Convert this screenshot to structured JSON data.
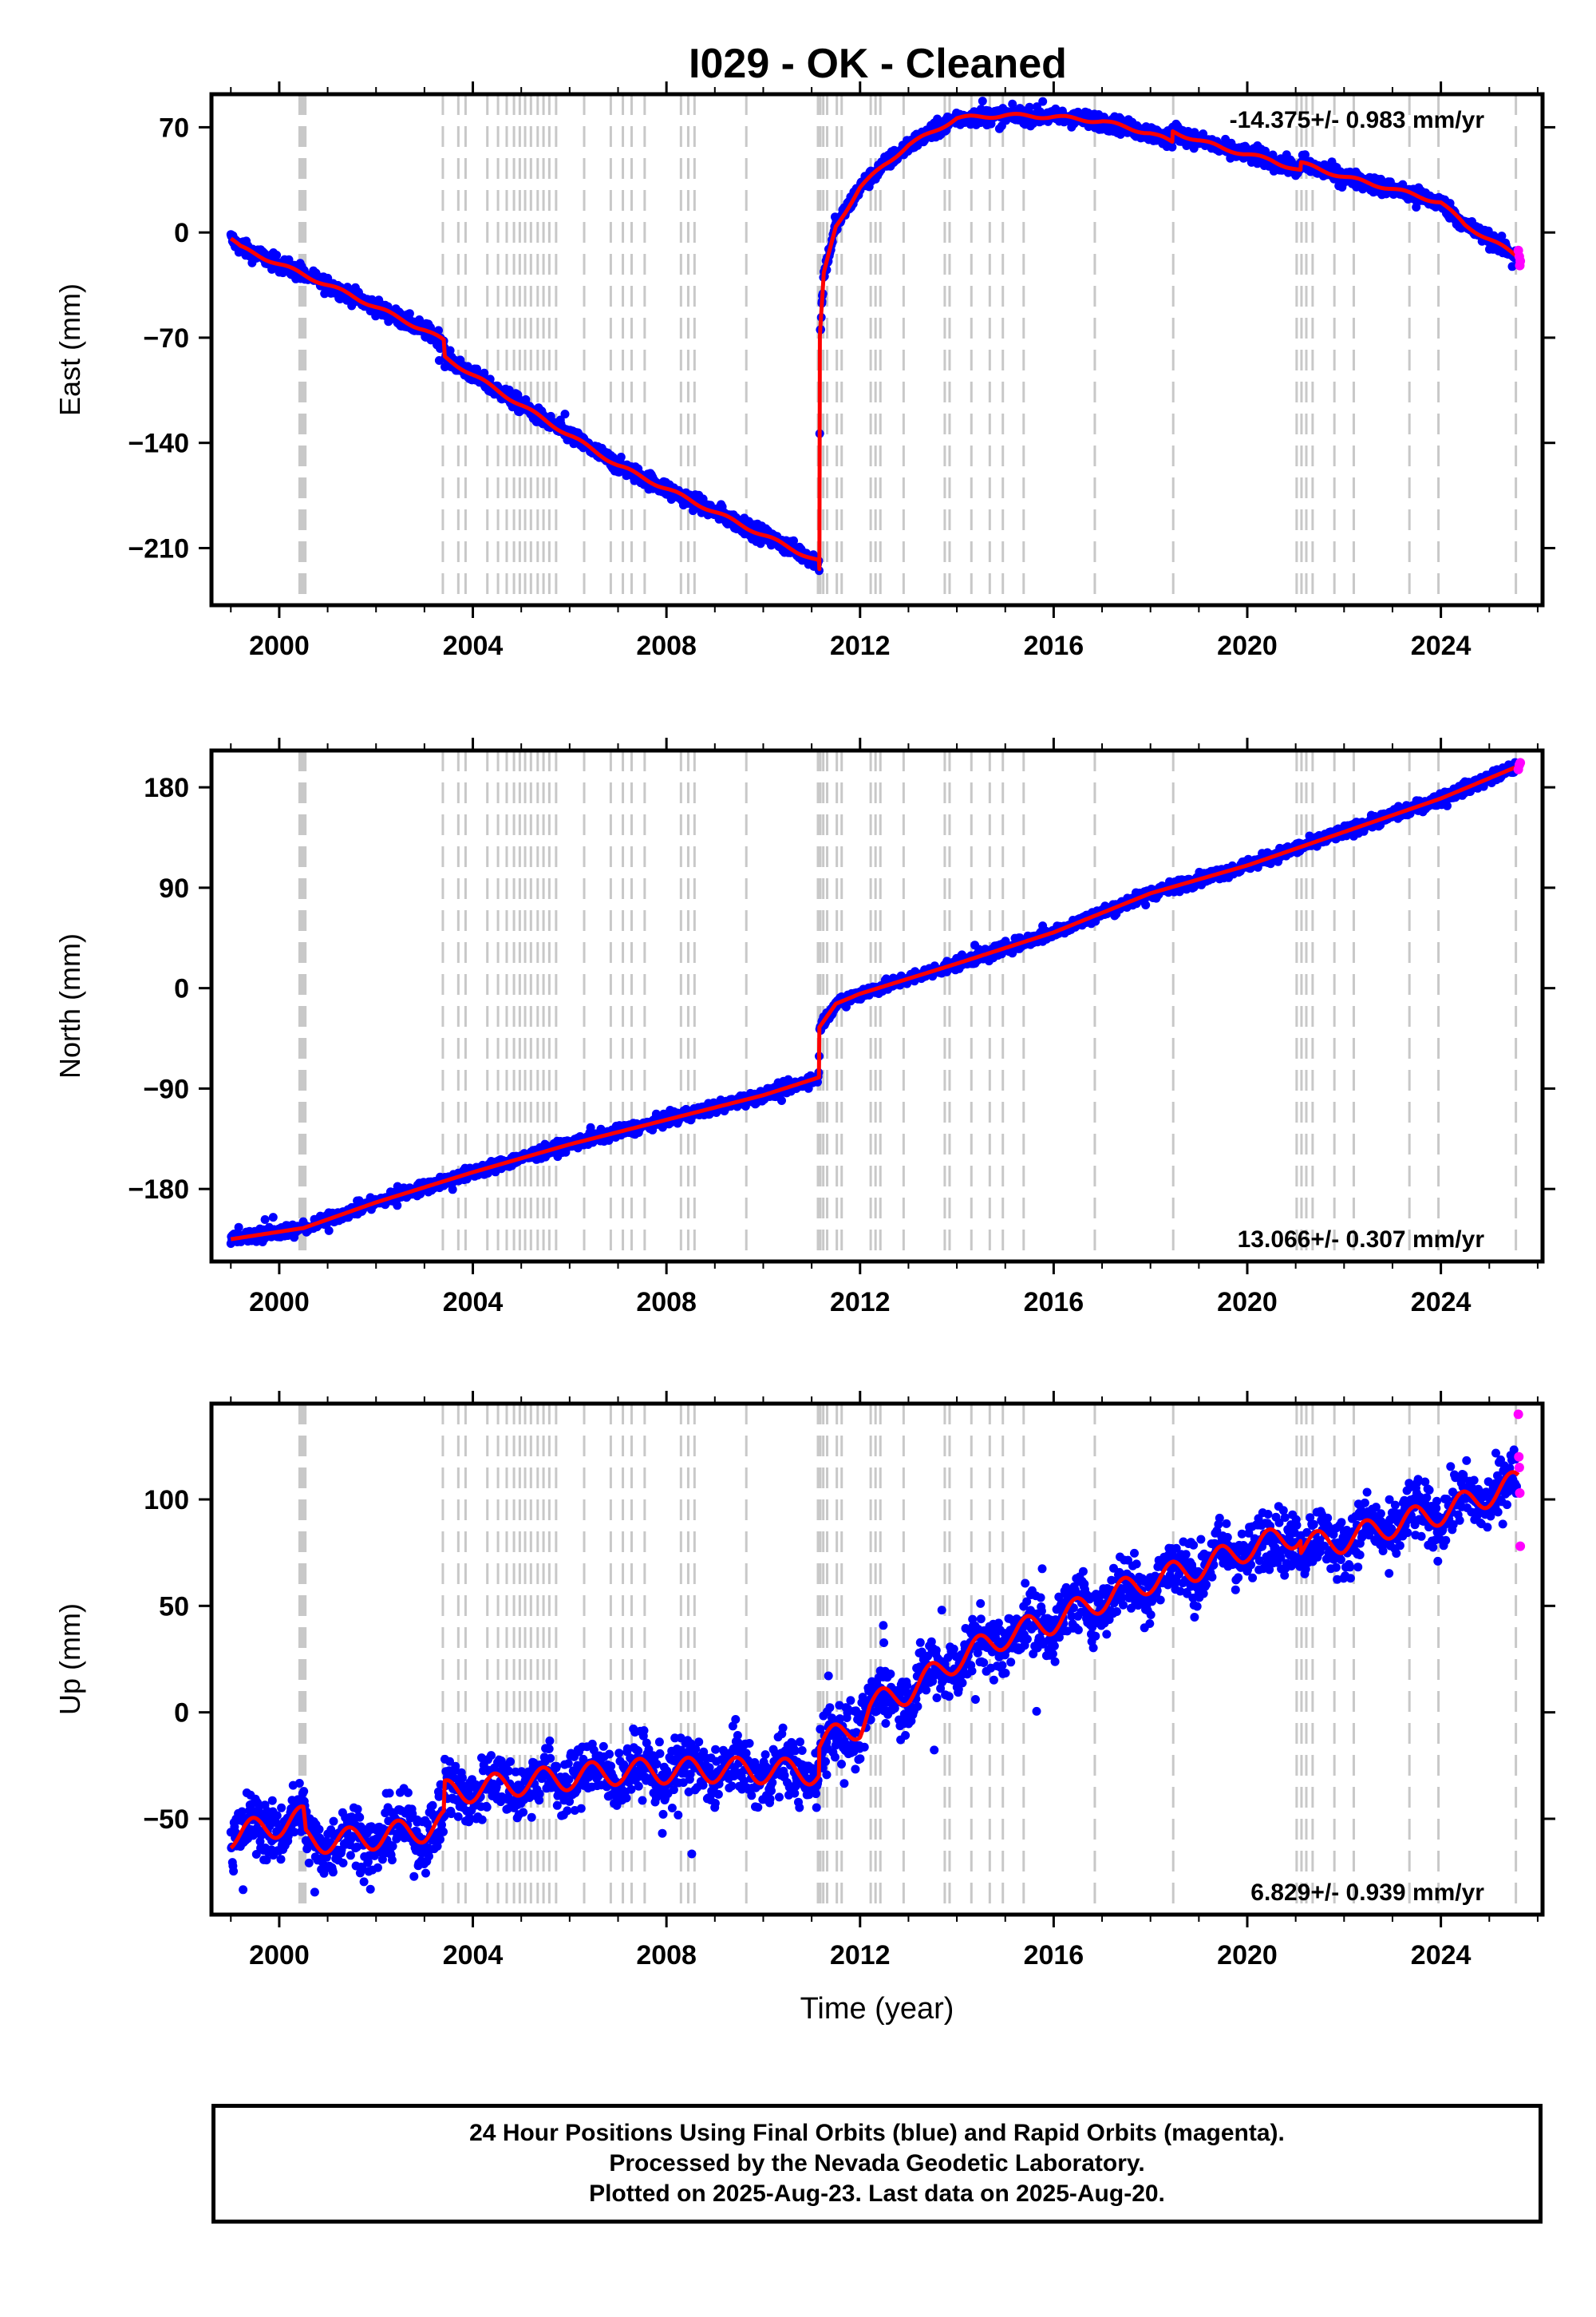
{
  "title": "I029  - OK - Cleaned",
  "colors": {
    "final_orbits": "#0000ff",
    "rapid_orbits": "#ff00ff",
    "model": "#ff0000",
    "event_lines": "#c8c8c8",
    "frame": "#000000"
  },
  "footer": {
    "line1": "24 Hour Positions Using Final Orbits (blue) and Rapid Orbits (magenta).",
    "line2": "Processed by the Nevada Geodetic Laboratory.",
    "line3": "Plotted on 2025-Aug-23. Last data on 2025-Aug-20."
  },
  "chart_data": [
    {
      "type": "scatter",
      "component": "east",
      "title": "I029  - OK - Cleaned",
      "xlabel": "",
      "ylabel": "East (mm)",
      "xlim": [
        1998.6,
        2026.1
      ],
      "ylim": [
        -248,
        92
      ],
      "x_ticks": [
        2000,
        2004,
        2008,
        2012,
        2016,
        2020,
        2024
      ],
      "y_ticks": [
        70,
        0,
        -70,
        -140,
        -210
      ],
      "rate_label": "-14.375+/- 0.983 mm/yr",
      "rate_position": "top-right",
      "grid": false,
      "model_breakpoints": [
        [
          1999.0,
          -4
        ],
        [
          1999.2,
          -10
        ],
        [
          2000.5,
          -28
        ],
        [
          2001.5,
          -42
        ],
        [
          2003.0,
          -65
        ],
        [
          2003.4,
          -72
        ],
        [
          2003.42,
          -83
        ],
        [
          2005.0,
          -115
        ],
        [
          2007.0,
          -155
        ],
        [
          2009.0,
          -186
        ],
        [
          2011.15,
          -219
        ],
        [
          2011.16,
          -225
        ],
        [
          2011.17,
          -70
        ],
        [
          2011.25,
          -28
        ],
        [
          2011.5,
          4
        ],
        [
          2012.0,
          30
        ],
        [
          2012.5,
          45
        ],
        [
          2013.0,
          58
        ],
        [
          2014.0,
          76
        ],
        [
          2015.0,
          78
        ],
        [
          2016.0,
          77
        ],
        [
          2017.0,
          74
        ],
        [
          2018.0,
          66
        ],
        [
          2018.45,
          60
        ],
        [
          2018.46,
          67
        ],
        [
          2019.5,
          56
        ],
        [
          2020.5,
          48
        ],
        [
          2021.1,
          41
        ],
        [
          2021.11,
          46
        ],
        [
          2022.0,
          37
        ],
        [
          2023.0,
          29
        ],
        [
          2024.0,
          20
        ],
        [
          2024.5,
          5
        ],
        [
          2025.6,
          -16
        ]
      ],
      "rapid_points": [
        [
          2025.6,
          -12
        ],
        [
          2025.62,
          -16
        ],
        [
          2025.63,
          -22
        ],
        [
          2025.64,
          -19
        ]
      ]
    },
    {
      "type": "scatter",
      "component": "north",
      "xlabel": "",
      "ylabel": "North (mm)",
      "xlim": [
        1998.6,
        2026.1
      ],
      "ylim": [
        -245,
        213
      ],
      "x_ticks": [
        2000,
        2004,
        2008,
        2012,
        2016,
        2020,
        2024
      ],
      "y_ticks": [
        180,
        90,
        0,
        -90,
        -180
      ],
      "rate_label": "13.066+/- 0.307 mm/yr",
      "rate_position": "bottom-right",
      "grid": false,
      "model_breakpoints": [
        [
          1999.0,
          -225
        ],
        [
          2000.5,
          -215
        ],
        [
          2002.0,
          -192
        ],
        [
          2004.0,
          -165
        ],
        [
          2006.0,
          -140
        ],
        [
          2008.0,
          -118
        ],
        [
          2010.0,
          -96
        ],
        [
          2011.15,
          -80
        ],
        [
          2011.16,
          -35
        ],
        [
          2011.5,
          -14
        ],
        [
          2012.0,
          -5
        ],
        [
          2014.0,
          22
        ],
        [
          2016.0,
          50
        ],
        [
          2018.0,
          85
        ],
        [
          2020.0,
          110
        ],
        [
          2022.0,
          140
        ],
        [
          2024.0,
          170
        ],
        [
          2025.6,
          199
        ]
      ],
      "rapid_points": [
        [
          2025.6,
          196
        ],
        [
          2025.62,
          200
        ],
        [
          2025.64,
          202
        ]
      ]
    },
    {
      "type": "scatter",
      "component": "up",
      "xlabel": "Time (year)",
      "ylabel": "Up (mm)",
      "xlim": [
        1998.6,
        2026.1
      ],
      "ylim": [
        -95,
        145
      ],
      "x_ticks": [
        2000,
        2004,
        2008,
        2012,
        2016,
        2020,
        2024
      ],
      "y_ticks": [
        100,
        50,
        0,
        -50
      ],
      "rate_label": "6.829+/- 0.939 mm/yr",
      "rate_position": "bottom-right",
      "grid": false,
      "model_breakpoints": [
        [
          1999.0,
          -58
        ],
        [
          2000.5,
          -50
        ],
        [
          2000.55,
          -60
        ],
        [
          2001.5,
          -60
        ],
        [
          2003.0,
          -55
        ],
        [
          2003.4,
          -52
        ],
        [
          2003.42,
          -38
        ],
        [
          2005.0,
          -33
        ],
        [
          2007.0,
          -28
        ],
        [
          2009.0,
          -27
        ],
        [
          2011.15,
          -28
        ],
        [
          2011.16,
          -15
        ],
        [
          2012.0,
          -6
        ],
        [
          2012.2,
          3
        ],
        [
          2013.0,
          10
        ],
        [
          2014.0,
          25
        ],
        [
          2015.0,
          36
        ],
        [
          2016.0,
          43
        ],
        [
          2017.0,
          53
        ],
        [
          2018.0,
          62
        ],
        [
          2019.0,
          68
        ],
        [
          2020.0,
          77
        ],
        [
          2021.1,
          84
        ],
        [
          2021.11,
          78
        ],
        [
          2022.0,
          81
        ],
        [
          2023.0,
          88
        ],
        [
          2024.0,
          94
        ],
        [
          2024.5,
          98
        ],
        [
          2025.6,
          108
        ]
      ],
      "rapid_points": [
        [
          2025.6,
          140
        ],
        [
          2025.61,
          120
        ],
        [
          2025.62,
          115
        ],
        [
          2025.63,
          103
        ],
        [
          2025.64,
          78
        ]
      ]
    }
  ],
  "event_lines": [
    2000.42,
    2000.45,
    2000.48,
    2000.51,
    2000.54,
    2003.38,
    2003.7,
    2003.85,
    2004.3,
    2004.52,
    2004.7,
    2004.85,
    2004.97,
    2005.08,
    2005.2,
    2005.34,
    2005.46,
    2005.58,
    2005.72,
    2006.3,
    2006.85,
    2007.1,
    2007.28,
    2007.55,
    2008.3,
    2008.45,
    2008.58,
    2009.65,
    2011.13,
    2011.18,
    2011.24,
    2011.32,
    2011.52,
    2011.62,
    2012.22,
    2012.32,
    2012.42,
    2012.9,
    2013.75,
    2013.85,
    2014.3,
    2014.68,
    2014.95,
    2015.38,
    2016.85,
    2018.47,
    2021.02,
    2021.12,
    2021.22,
    2021.35,
    2021.8,
    2022.2,
    2023.35,
    2023.95,
    2025.55
  ]
}
